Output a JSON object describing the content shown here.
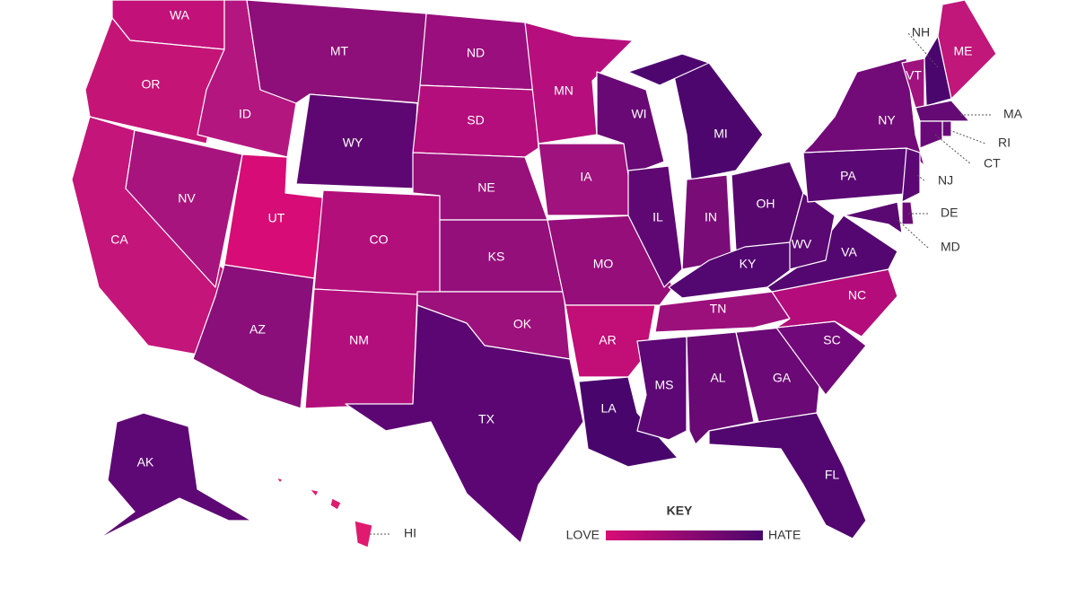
{
  "key": {
    "title": "KEY",
    "low": "LOVE",
    "high": "HATE",
    "low_color": "#d80c76",
    "high_color": "#4a066d"
  },
  "states": [
    {
      "label": "WA",
      "color": "#c2127a"
    },
    {
      "label": "OR",
      "color": "#c41577"
    },
    {
      "label": "CA",
      "color": "#c3157a"
    },
    {
      "label": "ID",
      "color": "#b41680"
    },
    {
      "label": "NV",
      "color": "#a8147e"
    },
    {
      "label": "UT",
      "color": "#d80c76"
    },
    {
      "label": "AZ",
      "color": "#8a0f7a"
    },
    {
      "label": "MT",
      "color": "#8e0f79"
    },
    {
      "label": "WY",
      "color": "#5e0772"
    },
    {
      "label": "CO",
      "color": "#b20f7b"
    },
    {
      "label": "NM",
      "color": "#b20f7c"
    },
    {
      "label": "ND",
      "color": "#9a0f7d"
    },
    {
      "label": "SD",
      "color": "#b40e7c"
    },
    {
      "label": "NE",
      "color": "#981079"
    },
    {
      "label": "KS",
      "color": "#950f7b"
    },
    {
      "label": "OK",
      "color": "#9c117c"
    },
    {
      "label": "TX",
      "color": "#5c0674"
    },
    {
      "label": "MN",
      "color": "#b60f7d"
    },
    {
      "label": "IA",
      "color": "#a0127d"
    },
    {
      "label": "MO",
      "color": "#950e7a"
    },
    {
      "label": "AR",
      "color": "#c20e77"
    },
    {
      "label": "LA",
      "color": "#48066d"
    },
    {
      "label": "WI",
      "color": "#680975"
    },
    {
      "label": "IL",
      "color": "#5f0874"
    },
    {
      "label": "MI",
      "color": "#4e066f"
    },
    {
      "label": "IN",
      "color": "#7a0c77"
    },
    {
      "label": "OH",
      "color": "#58076f"
    },
    {
      "label": "KY",
      "color": "#530770"
    },
    {
      "label": "TN",
      "color": "#9c107c"
    },
    {
      "label": "MS",
      "color": "#5d0874"
    },
    {
      "label": "AL",
      "color": "#680974"
    },
    {
      "label": "GA",
      "color": "#6b0976"
    },
    {
      "label": "FL",
      "color": "#520670"
    },
    {
      "label": "SC",
      "color": "#72097a"
    },
    {
      "label": "NC",
      "color": "#b40c7a"
    },
    {
      "label": "VA",
      "color": "#540770"
    },
    {
      "label": "WV",
      "color": "#5a0872"
    },
    {
      "label": "PA",
      "color": "#5a0873"
    },
    {
      "label": "NY",
      "color": "#720a78"
    },
    {
      "label": "VT",
      "color": "#a0137f"
    },
    {
      "label": "NH",
      "color": "#4a066d"
    },
    {
      "label": "ME",
      "color": "#c1167a"
    },
    {
      "label": "MA",
      "color": "#650974"
    },
    {
      "label": "RI",
      "color": "#68097a"
    },
    {
      "label": "CT",
      "color": "#6a0a79"
    },
    {
      "label": "NJ",
      "color": "#5b0874"
    },
    {
      "label": "DE",
      "color": "#6c0a78"
    },
    {
      "label": "MD",
      "color": "#5a0872"
    },
    {
      "label": "AK",
      "color": "#5d0874"
    },
    {
      "label": "HI",
      "color": "#e01a6e"
    }
  ]
}
